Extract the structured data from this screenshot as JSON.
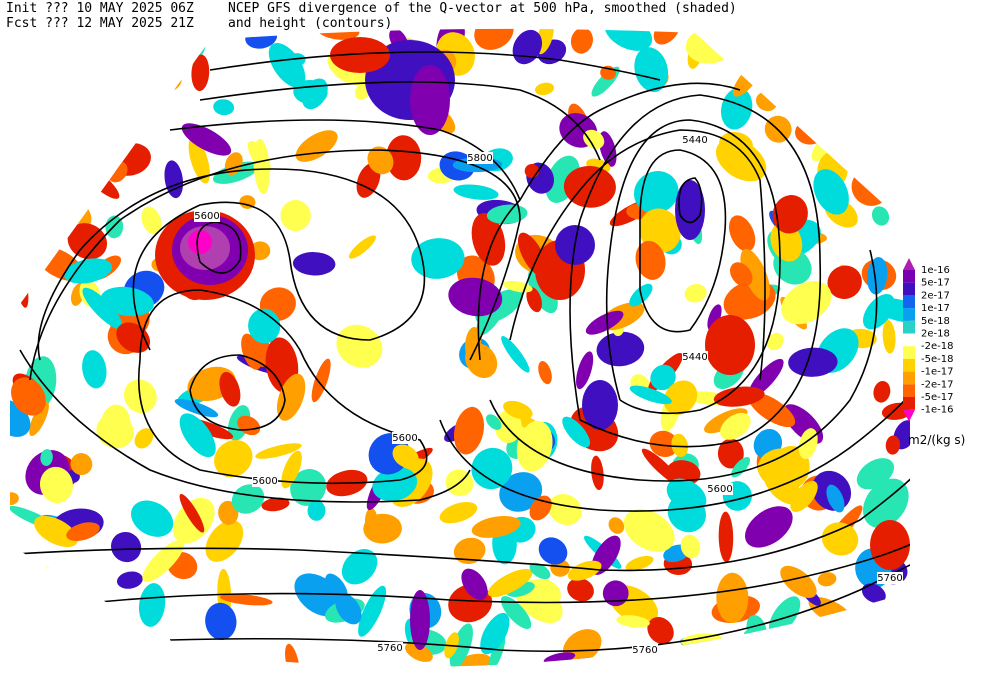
{
  "header": {
    "init": "Init  ??? 10 MAY 2025 06Z",
    "fcst": "Fcst ??? 12 MAY 2025 21Z",
    "title": "NCEP GFS divergence of the Q-vector at 500 hPa, smoothed (shaded)",
    "subtitle": "and height (contours)"
  },
  "contour_labels": [
    "5600",
    "5800",
    "5440",
    "5440",
    "5600",
    "5600",
    "5600",
    "5760",
    "5760",
    "5760"
  ],
  "colorbar": {
    "labels": [
      "1e-16",
      "5e-17",
      "2e-17",
      "1e-17",
      "5e-18",
      "2e-18",
      "-2e-18",
      "-5e-18",
      "-1e-17",
      "-2e-17",
      "-5e-17",
      "-1e-16"
    ],
    "unit": "m2/(kg s)"
  }
}
